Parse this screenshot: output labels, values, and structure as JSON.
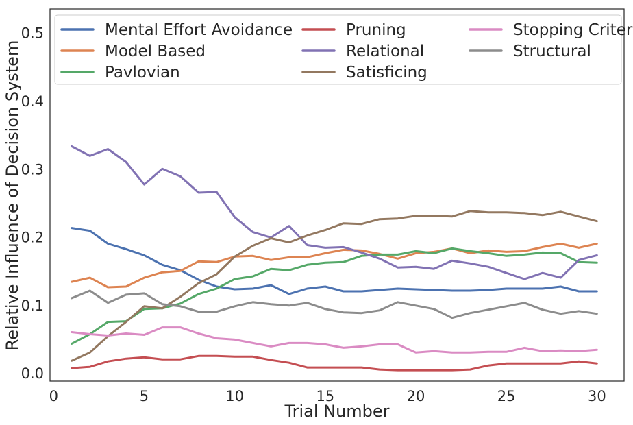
{
  "chart_data": {
    "type": "line",
    "title": "",
    "xlabel": "Trial Number",
    "ylabel": "Relative Influence of Decision System",
    "xlim": [
      -0.2,
      31.5
    ],
    "ylim": [
      -0.012,
      0.535
    ],
    "xticks": [
      0,
      5,
      10,
      15,
      20,
      25,
      30
    ],
    "yticks": [
      0.0,
      0.1,
      0.2,
      0.3,
      0.4,
      0.5
    ],
    "xtick_labels": [
      "0",
      "5",
      "10",
      "15",
      "20",
      "25",
      "30"
    ],
    "ytick_labels": [
      "0.0",
      "0.1",
      "0.2",
      "0.3",
      "0.4",
      "0.5"
    ],
    "grid": false,
    "legend": {
      "placement": "top",
      "columns": 3
    },
    "x": [
      1,
      2,
      3,
      4,
      5,
      6,
      7,
      8,
      9,
      10,
      11,
      12,
      13,
      14,
      15,
      16,
      17,
      18,
      19,
      20,
      21,
      22,
      23,
      24,
      25,
      26,
      27,
      28,
      29,
      30
    ],
    "series": [
      {
        "name": "Mental Effort Avoidance",
        "color": "#4c72b0",
        "values": [
          0.213,
          0.209,
          0.19,
          0.182,
          0.173,
          0.159,
          0.151,
          0.137,
          0.127,
          0.123,
          0.124,
          0.129,
          0.116,
          0.124,
          0.127,
          0.12,
          0.12,
          0.122,
          0.124,
          0.123,
          0.122,
          0.121,
          0.121,
          0.122,
          0.124,
          0.124,
          0.124,
          0.127,
          0.12,
          0.12
        ]
      },
      {
        "name": "Model Based",
        "color": "#dd8452",
        "values": [
          0.134,
          0.14,
          0.126,
          0.127,
          0.14,
          0.148,
          0.15,
          0.164,
          0.163,
          0.171,
          0.172,
          0.166,
          0.17,
          0.17,
          0.176,
          0.181,
          0.18,
          0.175,
          0.168,
          0.176,
          0.178,
          0.183,
          0.176,
          0.18,
          0.178,
          0.179,
          0.185,
          0.19,
          0.184,
          0.19
        ]
      },
      {
        "name": "Pavlovian",
        "color": "#55a868",
        "values": [
          0.043,
          0.057,
          0.075,
          0.076,
          0.094,
          0.095,
          0.102,
          0.116,
          0.124,
          0.138,
          0.142,
          0.153,
          0.151,
          0.159,
          0.162,
          0.163,
          0.172,
          0.174,
          0.174,
          0.179,
          0.176,
          0.183,
          0.179,
          0.176,
          0.172,
          0.174,
          0.177,
          0.176,
          0.163,
          0.162
        ]
      },
      {
        "name": "Pruning",
        "color": "#c44e52",
        "values": [
          0.007,
          0.009,
          0.017,
          0.021,
          0.023,
          0.02,
          0.02,
          0.025,
          0.025,
          0.024,
          0.024,
          0.019,
          0.015,
          0.008,
          0.008,
          0.008,
          0.008,
          0.005,
          0.004,
          0.004,
          0.004,
          0.004,
          0.005,
          0.011,
          0.014,
          0.014,
          0.014,
          0.014,
          0.017,
          0.014
        ]
      },
      {
        "name": "Relational",
        "color": "#8172b3",
        "values": [
          0.333,
          0.319,
          0.329,
          0.31,
          0.277,
          0.3,
          0.289,
          0.265,
          0.266,
          0.229,
          0.207,
          0.199,
          0.216,
          0.188,
          0.184,
          0.185,
          0.177,
          0.168,
          0.155,
          0.156,
          0.153,
          0.165,
          0.161,
          0.156,
          0.147,
          0.138,
          0.147,
          0.14,
          0.166,
          0.173
        ]
      },
      {
        "name": "Satisficing",
        "color": "#937860",
        "values": [
          0.018,
          0.03,
          0.054,
          0.075,
          0.098,
          0.095,
          0.112,
          0.132,
          0.145,
          0.171,
          0.187,
          0.198,
          0.192,
          0.202,
          0.21,
          0.22,
          0.219,
          0.226,
          0.227,
          0.231,
          0.231,
          0.23,
          0.238,
          0.236,
          0.236,
          0.235,
          0.232,
          0.237,
          0.23,
          0.223
        ]
      },
      {
        "name": "Stopping Criteria",
        "color": "#da8bc3",
        "values": [
          0.06,
          0.057,
          0.055,
          0.058,
          0.056,
          0.067,
          0.067,
          0.058,
          0.051,
          0.049,
          0.044,
          0.039,
          0.044,
          0.044,
          0.042,
          0.037,
          0.039,
          0.042,
          0.042,
          0.03,
          0.032,
          0.03,
          0.03,
          0.031,
          0.031,
          0.037,
          0.032,
          0.033,
          0.032,
          0.034
        ]
      },
      {
        "name": "Structural",
        "color": "#8c8c8c",
        "values": [
          0.11,
          0.121,
          0.103,
          0.115,
          0.117,
          0.101,
          0.098,
          0.09,
          0.09,
          0.098,
          0.104,
          0.101,
          0.099,
          0.103,
          0.094,
          0.089,
          0.088,
          0.092,
          0.104,
          0.099,
          0.094,
          0.081,
          0.088,
          0.093,
          0.098,
          0.103,
          0.093,
          0.087,
          0.091,
          0.087
        ]
      }
    ]
  }
}
